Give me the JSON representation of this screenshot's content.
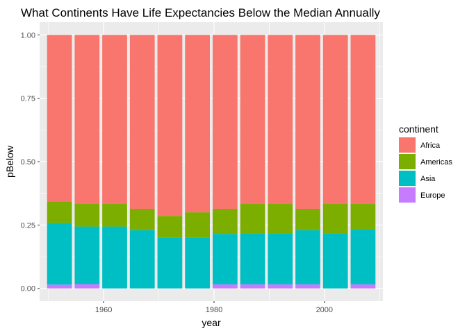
{
  "chart_data": {
    "type": "bar",
    "stacked": true,
    "title": "What Continents Have Life Expectancies Below the Median Annually",
    "xlabel": "year",
    "ylabel": "pBelow",
    "x": [
      1952,
      1957,
      1962,
      1967,
      1972,
      1977,
      1982,
      1987,
      1992,
      1997,
      2002,
      2007
    ],
    "x_ticks": [
      1960,
      1980,
      2000
    ],
    "x_tick_labels": [
      "1960",
      "1980",
      "2000"
    ],
    "xlim": [
      1948.4,
      2010.6
    ],
    "bar_width_years": 4.5,
    "y_ticks": [
      0,
      0.25,
      0.5,
      0.75,
      1
    ],
    "y_tick_labels": [
      "0.00",
      "0.25",
      "0.50",
      "0.75",
      "1.00"
    ],
    "ylim": [
      -0.05,
      1.05
    ],
    "grid": true,
    "legend": {
      "title": "continent",
      "position": "right"
    },
    "series": [
      {
        "name": "Africa",
        "color": "#F8766D",
        "values": [
          0.657,
          0.667,
          0.667,
          0.686,
          0.714,
          0.7,
          0.686,
          0.667,
          0.667,
          0.686,
          0.667,
          0.667
        ]
      },
      {
        "name": "Americas",
        "color": "#7CAE00",
        "values": [
          0.085,
          0.089,
          0.089,
          0.084,
          0.086,
          0.1,
          0.099,
          0.116,
          0.116,
          0.084,
          0.116,
          0.101
        ]
      },
      {
        "name": "Asia",
        "color": "#00BFC4",
        "values": [
          0.243,
          0.227,
          0.244,
          0.23,
          0.2,
          0.2,
          0.199,
          0.201,
          0.201,
          0.214,
          0.217,
          0.216
        ]
      },
      {
        "name": "Europe",
        "color": "#C77CFF",
        "values": [
          0.015,
          0.017,
          0.0,
          0.0,
          0.0,
          0.0,
          0.016,
          0.016,
          0.016,
          0.016,
          0.0,
          0.016
        ]
      }
    ]
  }
}
